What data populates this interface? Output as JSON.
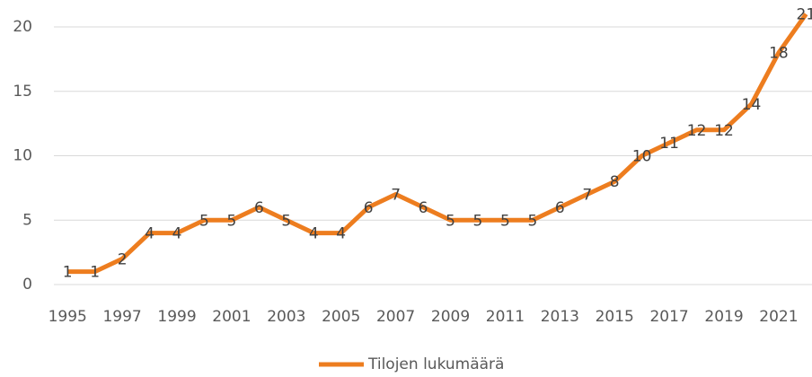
{
  "chart_data": {
    "type": "line",
    "categories": [
      "1995",
      null,
      "1997",
      null,
      "1999",
      null,
      "2001",
      null,
      "2003",
      null,
      "2005",
      null,
      "2007",
      null,
      "2009",
      null,
      "2011",
      null,
      "2013",
      null,
      "2015",
      null,
      "2017",
      null,
      "2019",
      null,
      "2021",
      null
    ],
    "series": [
      {
        "name": "Tilojen lukumäärä",
        "color": "#ed7d1f",
        "values": [
          1,
          1,
          2,
          4,
          4,
          5,
          5,
          6,
          5,
          4,
          4,
          6,
          7,
          6,
          5,
          5,
          5,
          5,
          6,
          7,
          8,
          10,
          11,
          12,
          12,
          14,
          18,
          21
        ]
      }
    ],
    "ylim": [
      0,
      20
    ],
    "yticks": [
      0,
      5,
      10,
      15,
      20
    ],
    "grid": true,
    "legend": "bottom"
  }
}
